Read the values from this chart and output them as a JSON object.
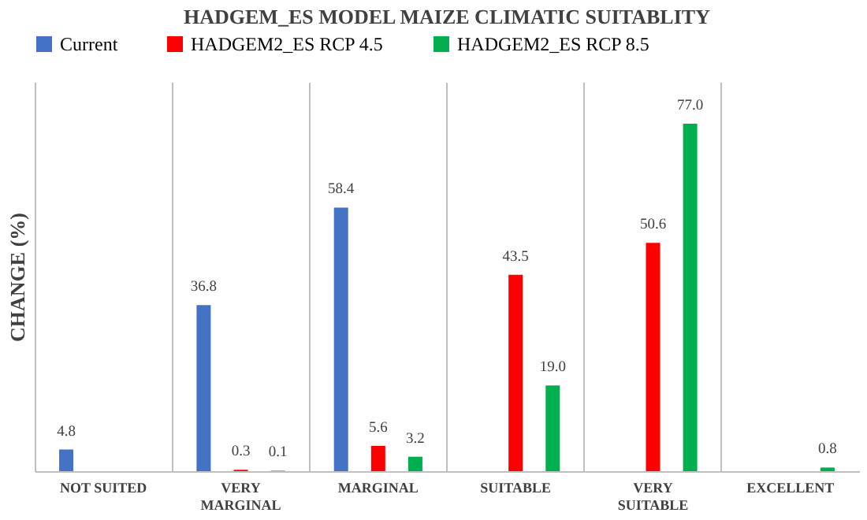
{
  "chart_data": {
    "type": "bar",
    "title": "HADGEM_ES MODEL MAIZE CLIMATIC SUITABLITY",
    "ylabel": "CHANGE (%)",
    "categories": [
      "NOT SUITED",
      "VERY MARGINAL",
      "MARGINAL",
      "SUITABLE",
      "VERY SUITABLE",
      "EXCELLENT"
    ],
    "series": [
      {
        "name": "Current",
        "color": "#4472c4",
        "values": [
          4.8,
          36.8,
          58.4,
          null,
          null,
          null
        ],
        "value_labels": [
          "4.8",
          "36.8",
          "58.4",
          null,
          null,
          null
        ]
      },
      {
        "name": "HADGEM2_ES RCP 4.5",
        "color": "#ff0000",
        "values": [
          null,
          0.3,
          5.6,
          43.5,
          50.6,
          null
        ],
        "value_labels": [
          null,
          "0.3",
          "5.6",
          "43.5",
          "50.6",
          null
        ]
      },
      {
        "name": "HADGEM2_ES RCP 8.5",
        "color": "#00b050",
        "values": [
          null,
          0.1,
          3.2,
          19.0,
          77.0,
          0.8
        ],
        "value_labels": [
          null,
          "0.1",
          "3.2",
          "19.0",
          "77.0",
          "0.8"
        ]
      }
    ],
    "legend": "top",
    "grid": "x",
    "tick_labels": "x"
  }
}
